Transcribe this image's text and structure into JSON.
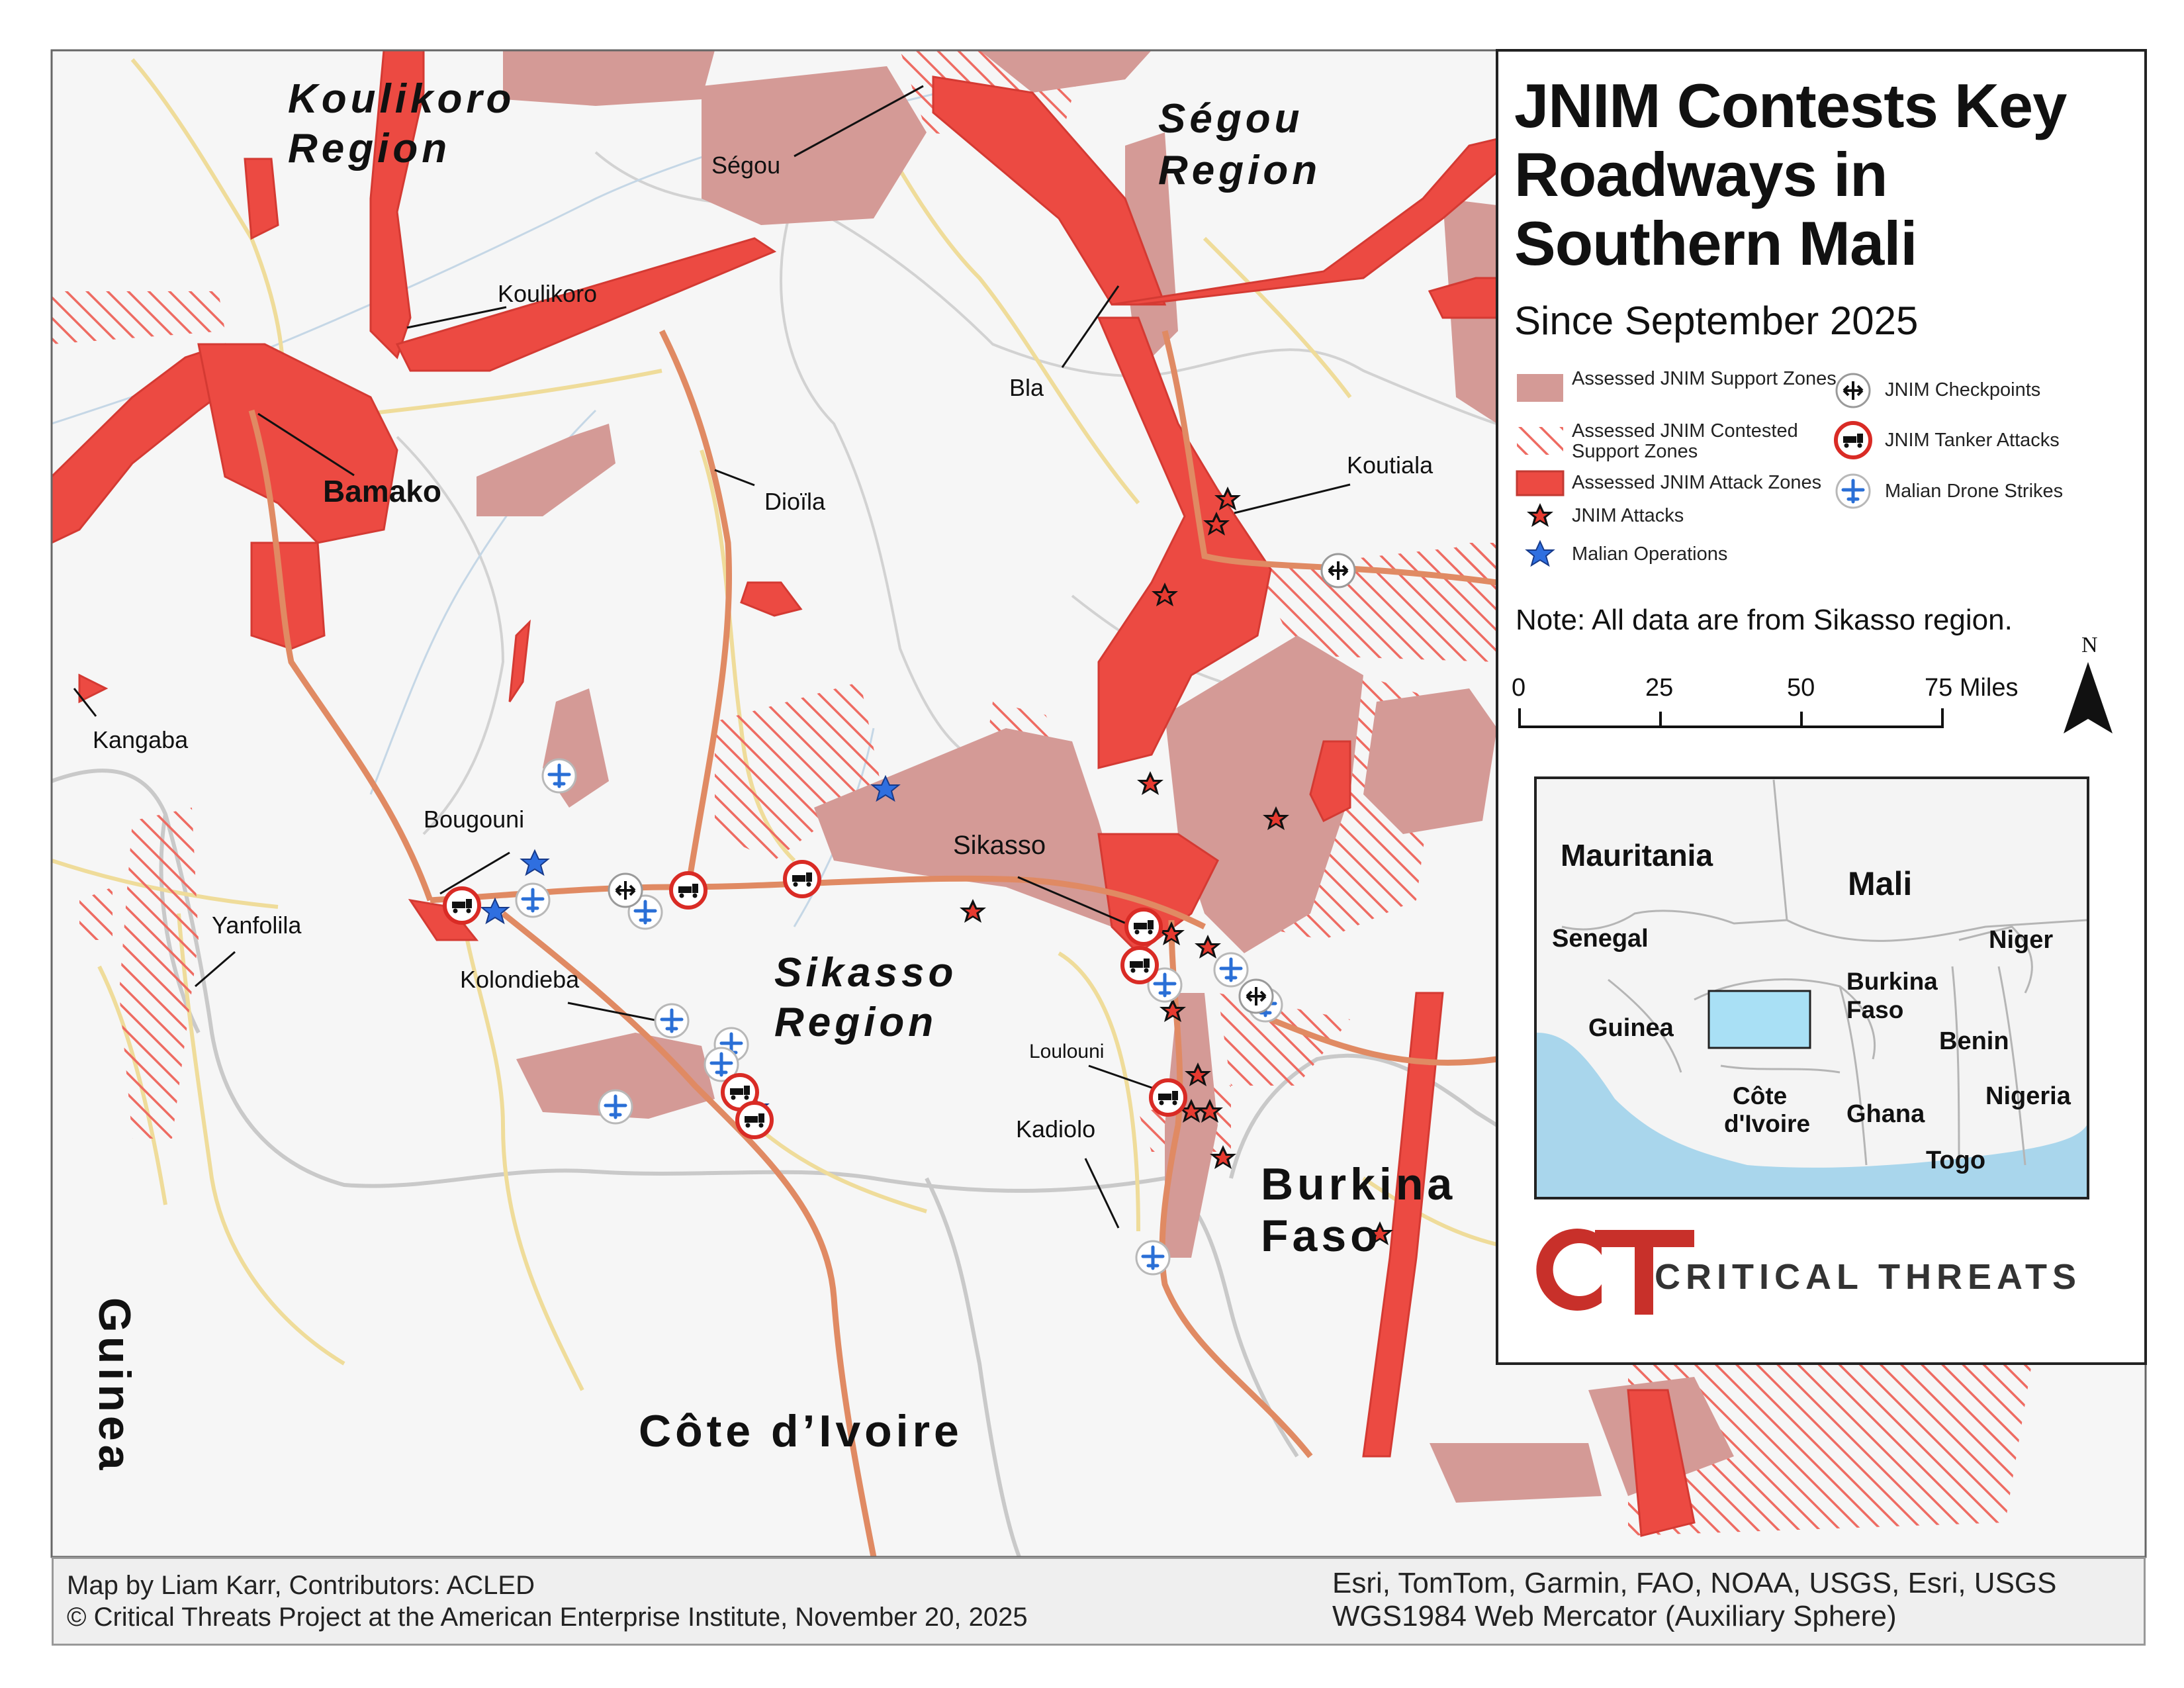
{
  "title": {
    "heading": "JNIM Contests Key Roadways in Southern Mali",
    "subtitle": "Since September 2025",
    "note": "Note: All data are from Sikasso region."
  },
  "legend": {
    "items": [
      {
        "key": "support",
        "label": "Assessed JNIM Support Zones",
        "color": "#d49a96"
      },
      {
        "key": "contested",
        "label": "Assessed JNIM Contested Support Zones",
        "color": "#e8564c"
      },
      {
        "key": "attack_zone",
        "label": "Assessed JNIM Attack Zones",
        "color": "#ec4a42"
      },
      {
        "key": "attack",
        "label": "JNIM Attacks",
        "icon": "red-black-star-icon"
      },
      {
        "key": "operation",
        "label": "Malian Operations",
        "icon": "blue-star-icon"
      },
      {
        "key": "checkpoint",
        "label": "JNIM Checkpoints",
        "icon": "checkpoint-arrows-icon"
      },
      {
        "key": "tanker",
        "label": "JNIM Tanker Attacks",
        "icon": "tanker-truck-icon"
      },
      {
        "key": "drone",
        "label": "Malian Drone Strikes",
        "icon": "drone-plane-icon"
      }
    ]
  },
  "scale": {
    "ticks": [
      "0",
      "25",
      "50",
      "75 Miles"
    ],
    "north": "N"
  },
  "map_labels": {
    "regions": {
      "koulikoro": [
        "Koulikoro",
        "Region"
      ],
      "segou": [
        "Ségou",
        "Region"
      ],
      "sikasso": [
        "Sikasso",
        "Region"
      ]
    },
    "countries": {
      "guinea": "Guinea",
      "burkina": [
        "Burkina",
        "Faso"
      ],
      "cote": "Côte d’Ivoire"
    },
    "cities": {
      "segou": "Ségou",
      "koulikoro": "Koulikoro",
      "bamako": "Bamako",
      "bla": "Bla",
      "dioila": "Dioïla",
      "koutiala": "Koutiala",
      "kangaba": "Kangaba",
      "bougouni": "Bougouni",
      "sikasso": "Sikasso",
      "yanfolila": "Yanfolila",
      "kolondieba": "Kolondieba",
      "loulouni": "Loulouni",
      "kadiolo": "Kadiolo"
    }
  },
  "inset": {
    "labels": {
      "mauritania": "Mauritania",
      "mali": "Mali",
      "senegal": "Senegal",
      "niger": "Niger",
      "burkina": [
        "Burkina",
        "Faso"
      ],
      "guinea": "Guinea",
      "benin": "Benin",
      "cote": [
        "Côte",
        "d'Ivoire"
      ],
      "ghana": "Ghana",
      "nigeria": "Nigeria",
      "togo": "Togo"
    },
    "highlight_color": "#a9e0f5"
  },
  "brand": {
    "logo_letters": "CT",
    "name": "CRITICAL THREATS",
    "color": "#c8302a"
  },
  "footer": {
    "credit1": "Map by Liam Karr, Contributors: ACLED",
    "credit2": "© Critical Threats Project at the American Enterprise Institute, November 20, 2025",
    "source1": "Esri, TomTom, Garmin, FAO, NOAA, USGS, Esri, USGS",
    "source2": "WGS1984 Web Mercator (Auxiliary Sphere)"
  }
}
